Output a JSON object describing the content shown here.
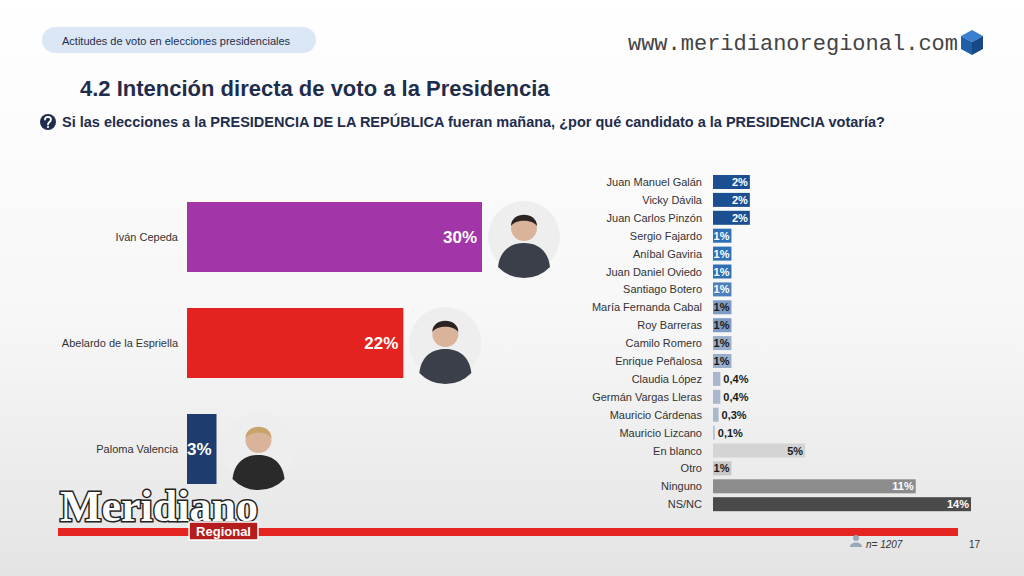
{
  "page": {
    "section": "Actitudes de voto en elecciones presidenciales",
    "url": "www.meridianoregional.com",
    "brand": "Meridiano",
    "brand_sub": "Regional",
    "sample": "n= 1207",
    "page_number": "17"
  },
  "chart_data": [
    {
      "type": "bar",
      "orientation": "horizontal",
      "title": "4.2 Intención directa de voto a la Presidencia",
      "subtitle": "Si las elecciones a la PRESIDENCIA DE LA REPÚBLICA fueran mañana, ¿por qué candidato a la PRESIDENCIA votaría?",
      "categories": [
        "Iván Cepeda",
        "Abelardo de la Espriella",
        "Paloma Valencia"
      ],
      "values": [
        30,
        22,
        3
      ],
      "value_labels": [
        "30%",
        "22%",
        "3%"
      ],
      "colors": [
        "#a235a8",
        "#e42320",
        "#1e3c6e"
      ],
      "data_labels": true,
      "tick_labels": "y"
    },
    {
      "type": "bar",
      "orientation": "horizontal",
      "categories": [
        "Juan Manuel Galán",
        "Vicky Dávila",
        "Juan Carlos Pinzón",
        "Sergio Fajardo",
        "Aníbal Gaviria",
        "Juan Daniel Oviedo",
        "Santiago Botero",
        "María Fernanda Cabal",
        "Roy Barreras",
        "Camilo Romero",
        "Enrique Peñalosa",
        "Claudia López",
        "Germán Vargas Lleras",
        "Mauricio Cárdenas",
        "Mauricio Lizcano",
        "En blanco",
        "Otro",
        "Ninguno",
        "NS/NC"
      ],
      "values": [
        2,
        2,
        2,
        1,
        1,
        1,
        1,
        1,
        1,
        1,
        1,
        0.4,
        0.4,
        0.3,
        0.1,
        5,
        1,
        11,
        14
      ],
      "value_labels": [
        "2%",
        "2%",
        "2%",
        "1%",
        "1%",
        "1%",
        "1%",
        "1%",
        "1%",
        "1%",
        "1%",
        "0,4%",
        "0,4%",
        "0,3%",
        "0,1%",
        "5%",
        "1%",
        "11%",
        "14%"
      ],
      "colors": [
        "#1c4f91",
        "#1c4f91",
        "#1c4f91",
        "#2f6fb5",
        "#2f6fb5",
        "#2f6fb5",
        "#4f80bb",
        "#7d9cc4",
        "#7d9cc4",
        "#98aecb",
        "#98aecb",
        "#a9b8cc",
        "#a9b8cc",
        "#a9b8cc",
        "#b8c4d4",
        "#d4d4d4",
        "#c8c8c8",
        "#8c8c8c",
        "#4a4a4a"
      ],
      "data_labels": true,
      "tick_labels": "y"
    }
  ]
}
